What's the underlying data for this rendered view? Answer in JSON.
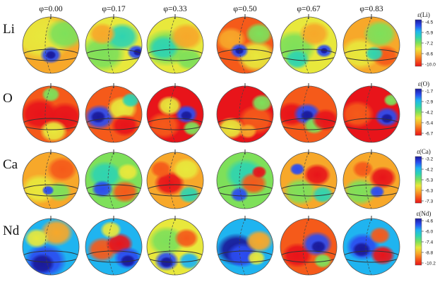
{
  "columns": [
    "φ=0.00",
    "φ=0.17",
    "φ=0.33",
    "φ=0.50",
    "φ=0.67",
    "φ=0.83"
  ],
  "rows": [
    {
      "element": "Li",
      "colorbar_title": "ε(Li)",
      "ticks": [
        "-4.5",
        "-5.9",
        "-7.2",
        "-8.6",
        "-10.0"
      ]
    },
    {
      "element": "O",
      "colorbar_title": "ε(O)",
      "ticks": [
        "-1.7",
        "-2.9",
        "-4.2",
        "-5.4",
        "-6.7"
      ]
    },
    {
      "element": "Ca",
      "colorbar_title": "ε(Ca)",
      "ticks": [
        "-3.2",
        "-4.2",
        "-5.3",
        "-6.3",
        "-7.3"
      ]
    },
    {
      "element": "Nd",
      "colorbar_title": "ε(Nd)",
      "ticks": [
        "-4.6",
        "-6.0",
        "-7.4",
        "-8.8",
        "-10.2"
      ]
    }
  ],
  "colormap": [
    "#1a1a9a",
    "#2b4cf0",
    "#1fb4f0",
    "#2fd4b0",
    "#7ee05a",
    "#e8e83c",
    "#f7a82a",
    "#f55a1a",
    "#e8141a"
  ],
  "sphere_patterns": {
    "Li": [
      "yellow-orange, blue spot lower center",
      "yellow-green, blue spot right edge",
      "yellow with green band",
      "orange-red, blue spot left-center",
      "yellow-green, blue spot right",
      "yellow-orange with green"
    ],
    "O": [
      "red lobes with yellow band",
      "blue-red mixed",
      "red with blue strip",
      "red with yellow",
      "blue band center, red sides",
      "red core, blue band right"
    ],
    "Ca": [
      "yellow-orange mixed",
      "green-blue patches",
      "red-yellow patches",
      "green with red/blue",
      "red with green",
      "yellow-red with green"
    ],
    "Nd": [
      "blue lower, yellow top",
      "blue-red stripes",
      "yellow-green with blue",
      "blue left, yellow right",
      "red with blue",
      "blue with red"
    ]
  }
}
